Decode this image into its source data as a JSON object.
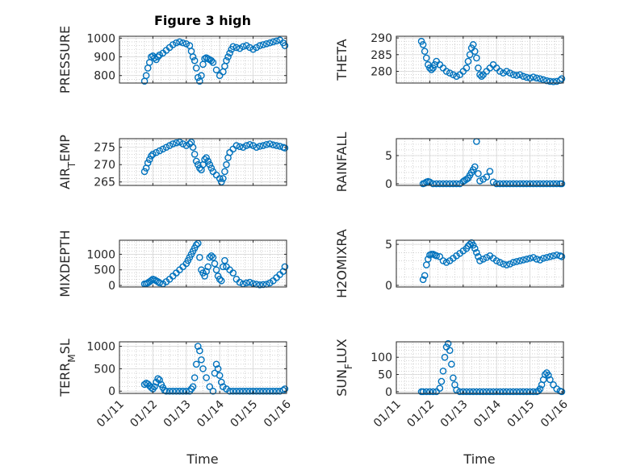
{
  "figure": {
    "title": "Figure 3 high",
    "marker_color": "#0072BD",
    "axis_color": "#262626",
    "grid_color": "#b8b8b8",
    "x_tick_labels": [
      "01/11",
      "01/12",
      "01/13",
      "01/14",
      "01/15",
      "01/16"
    ],
    "xlabel": "Time"
  },
  "chart_data": [
    {
      "type": "scatter",
      "ylabel": "PRESSURE",
      "yticks": [
        800,
        900,
        1000
      ],
      "ylim": [
        760,
        1010
      ],
      "xlim": [
        0,
        5
      ],
      "grid": true,
      "x": [
        0.75,
        0.8,
        0.85,
        0.9,
        0.95,
        1.0,
        1.05,
        1.1,
        1.15,
        1.2,
        1.3,
        1.4,
        1.5,
        1.6,
        1.7,
        1.8,
        1.9,
        2.0,
        2.1,
        2.15,
        2.2,
        2.25,
        2.3,
        2.35,
        2.4,
        2.45,
        2.5,
        2.55,
        2.6,
        2.65,
        2.7,
        2.75,
        2.8,
        2.9,
        3.0,
        3.1,
        3.15,
        3.2,
        3.25,
        3.3,
        3.35,
        3.4,
        3.5,
        3.6,
        3.7,
        3.8,
        3.9,
        4.0,
        4.1,
        4.2,
        4.3,
        4.4,
        4.5,
        4.6,
        4.7,
        4.8,
        4.9,
        4.95
      ],
      "y": [
        770,
        800,
        840,
        870,
        900,
        905,
        895,
        885,
        900,
        910,
        920,
        935,
        950,
        965,
        975,
        980,
        975,
        970,
        960,
        930,
        900,
        880,
        840,
        790,
        770,
        800,
        860,
        890,
        895,
        890,
        885,
        880,
        870,
        830,
        800,
        820,
        850,
        880,
        900,
        920,
        940,
        955,
        950,
        945,
        955,
        960,
        950,
        940,
        950,
        960,
        965,
        970,
        975,
        980,
        985,
        990,
        975,
        960
      ]
    },
    {
      "type": "scatter",
      "ylabel": "THETA",
      "yticks": [
        280,
        285,
        290
      ],
      "ylim": [
        276.5,
        290.5
      ],
      "xlim": [
        0,
        5
      ],
      "grid": true,
      "x": [
        0.75,
        0.8,
        0.85,
        0.9,
        0.95,
        1.0,
        1.05,
        1.1,
        1.15,
        1.2,
        1.3,
        1.4,
        1.5,
        1.6,
        1.7,
        1.8,
        1.9,
        2.0,
        2.1,
        2.15,
        2.2,
        2.25,
        2.3,
        2.35,
        2.4,
        2.45,
        2.5,
        2.55,
        2.6,
        2.7,
        2.8,
        2.9,
        3.0,
        3.1,
        3.2,
        3.3,
        3.4,
        3.5,
        3.6,
        3.7,
        3.8,
        3.9,
        4.0,
        4.1,
        4.2,
        4.3,
        4.4,
        4.5,
        4.6,
        4.7,
        4.8,
        4.9,
        4.95
      ],
      "y": [
        289,
        288,
        286,
        284,
        282,
        281,
        280.5,
        281,
        282,
        283,
        282,
        281,
        280,
        279.5,
        279,
        278.5,
        279,
        280,
        281,
        283,
        285,
        287,
        288,
        286,
        284,
        281,
        279,
        278.5,
        279,
        280,
        281,
        282,
        281,
        280,
        279.5,
        280,
        279.5,
        279,
        278.8,
        279,
        278.5,
        278.2,
        278,
        278.3,
        278,
        277.8,
        277.5,
        277.2,
        277,
        276.9,
        277,
        277.3,
        277.8
      ]
    },
    {
      "type": "scatter",
      "ylabel": "AIR_TEMP",
      "ylabel_main": "AIR",
      "ylabel_sub": "T",
      "ylabel_rest": "EMP",
      "yticks": [
        265,
        270,
        275
      ],
      "ylim": [
        264,
        277.5
      ],
      "xlim": [
        0,
        5
      ],
      "grid": true,
      "x": [
        0.75,
        0.8,
        0.85,
        0.9,
        0.95,
        1.0,
        1.1,
        1.2,
        1.3,
        1.4,
        1.5,
        1.6,
        1.7,
        1.8,
        1.9,
        2.0,
        2.1,
        2.15,
        2.2,
        2.25,
        2.3,
        2.35,
        2.4,
        2.45,
        2.5,
        2.55,
        2.6,
        2.65,
        2.7,
        2.75,
        2.8,
        2.9,
        3.0,
        3.05,
        3.1,
        3.15,
        3.2,
        3.25,
        3.3,
        3.4,
        3.5,
        3.6,
        3.7,
        3.8,
        3.9,
        4.0,
        4.1,
        4.2,
        4.3,
        4.4,
        4.5,
        4.6,
        4.7,
        4.8,
        4.9,
        4.95
      ],
      "y": [
        268,
        269,
        270.5,
        271.5,
        272.5,
        273,
        273.5,
        274,
        274.5,
        275,
        275.5,
        276,
        276.3,
        276.5,
        276,
        275.5,
        276,
        276.5,
        275,
        273,
        271,
        270,
        269,
        268.5,
        270,
        271.5,
        272,
        271,
        270,
        269,
        268,
        267,
        266,
        265,
        266,
        268,
        270,
        272,
        273.5,
        274.5,
        275.5,
        275.2,
        275,
        275.5,
        275.8,
        275.5,
        275,
        275.3,
        275.5,
        275.8,
        276,
        275.7,
        275.5,
        275.3,
        275,
        274.8
      ]
    },
    {
      "type": "scatter",
      "ylabel": "RAINFALL",
      "yticks": [
        0,
        5
      ],
      "ylim": [
        -0.3,
        8
      ],
      "xlim": [
        0,
        5
      ],
      "grid": true,
      "x": [
        0.8,
        0.85,
        0.9,
        0.95,
        1.0,
        1.1,
        1.2,
        1.3,
        1.4,
        1.5,
        1.6,
        1.7,
        1.8,
        1.9,
        2.0,
        2.05,
        2.1,
        2.15,
        2.2,
        2.25,
        2.3,
        2.35,
        2.4,
        2.45,
        2.5,
        2.6,
        2.7,
        2.8,
        2.9,
        3.0,
        3.1,
        3.2,
        3.3,
        3.4,
        3.5,
        3.6,
        3.7,
        3.8,
        3.9,
        4.0,
        4.1,
        4.2,
        4.3,
        4.4,
        4.5,
        4.6,
        4.7,
        4.8,
        4.9,
        4.95
      ],
      "y": [
        0,
        0.1,
        0.3,
        0.4,
        0.3,
        0,
        0,
        0,
        0,
        0,
        0,
        0,
        0,
        0,
        0.4,
        0.6,
        0.8,
        1.0,
        1.5,
        2.0,
        2.5,
        3.0,
        7.5,
        1.8,
        0.5,
        0.8,
        1.2,
        2.2,
        0.3,
        0,
        0,
        0,
        0,
        0,
        0,
        0,
        0,
        0,
        0,
        0,
        0,
        0,
        0,
        0,
        0,
        0,
        0,
        0,
        0,
        0
      ]
    },
    {
      "type": "scatter",
      "ylabel": "MIXDEPTH",
      "yticks": [
        0,
        500,
        1000
      ],
      "ylim": [
        -50,
        1450
      ],
      "xlim": [
        0,
        5
      ],
      "grid": true,
      "x": [
        0.75,
        0.8,
        0.85,
        0.9,
        0.95,
        1.0,
        1.05,
        1.1,
        1.15,
        1.2,
        1.3,
        1.4,
        1.5,
        1.6,
        1.7,
        1.8,
        1.9,
        2.0,
        2.05,
        2.1,
        2.15,
        2.2,
        2.25,
        2.3,
        2.35,
        2.4,
        2.45,
        2.5,
        2.55,
        2.6,
        2.65,
        2.7,
        2.75,
        2.8,
        2.85,
        2.9,
        2.95,
        3.0,
        3.05,
        3.1,
        3.15,
        3.2,
        3.3,
        3.4,
        3.5,
        3.6,
        3.7,
        3.8,
        3.9,
        4.0,
        4.1,
        4.2,
        4.3,
        4.4,
        4.5,
        4.6,
        4.7,
        4.8,
        4.9,
        4.95
      ],
      "y": [
        50,
        60,
        80,
        120,
        160,
        200,
        180,
        150,
        120,
        80,
        50,
        120,
        200,
        300,
        400,
        500,
        600,
        700,
        800,
        900,
        1000,
        1100,
        1200,
        1300,
        1350,
        900,
        500,
        400,
        300,
        450,
        600,
        900,
        950,
        900,
        700,
        500,
        300,
        200,
        150,
        600,
        800,
        600,
        500,
        400,
        200,
        100,
        50,
        80,
        100,
        60,
        40,
        20,
        30,
        40,
        80,
        150,
        250,
        350,
        450,
        600
      ]
    },
    {
      "type": "scatter",
      "ylabel": "H2OMIXRA",
      "yticks": [
        0,
        5
      ],
      "ylim": [
        -0.2,
        5.5
      ],
      "xlim": [
        0,
        5
      ],
      "grid": true,
      "x": [
        0.8,
        0.85,
        0.9,
        0.95,
        1.0,
        1.05,
        1.1,
        1.15,
        1.2,
        1.3,
        1.4,
        1.5,
        1.6,
        1.7,
        1.8,
        1.9,
        2.0,
        2.1,
        2.15,
        2.2,
        2.25,
        2.3,
        2.35,
        2.4,
        2.45,
        2.5,
        2.6,
        2.7,
        2.8,
        2.9,
        3.0,
        3.1,
        3.2,
        3.3,
        3.4,
        3.5,
        3.6,
        3.7,
        3.8,
        3.9,
        4.0,
        4.1,
        4.2,
        4.3,
        4.4,
        4.5,
        4.6,
        4.7,
        4.8,
        4.9,
        4.95
      ],
      "y": [
        0.7,
        1.2,
        2.5,
        3.2,
        3.7,
        3.8,
        3.8,
        3.7,
        3.6,
        3.5,
        3.0,
        2.8,
        3.0,
        3.3,
        3.6,
        3.9,
        4.2,
        4.5,
        4.8,
        5.0,
        5.2,
        4.9,
        4.5,
        4.0,
        3.5,
        3.0,
        3.2,
        3.4,
        3.6,
        3.3,
        3.0,
        2.8,
        2.6,
        2.5,
        2.6,
        2.8,
        2.9,
        3.0,
        3.1,
        3.2,
        3.3,
        3.4,
        3.2,
        3.1,
        3.3,
        3.4,
        3.5,
        3.6,
        3.7,
        3.6,
        3.5
      ]
    },
    {
      "type": "scatter",
      "ylabel": "TERR_MSL",
      "ylabel_main": "TERR",
      "ylabel_sub": "M",
      "ylabel_rest": "SL",
      "yticks": [
        0,
        500,
        1000
      ],
      "ylim": [
        -50,
        1100
      ],
      "xlim": [
        0,
        5
      ],
      "grid": true,
      "x": [
        0.75,
        0.8,
        0.85,
        0.9,
        0.95,
        1.0,
        1.05,
        1.1,
        1.15,
        1.2,
        1.25,
        1.3,
        1.35,
        1.4,
        1.5,
        1.6,
        1.7,
        1.8,
        1.9,
        2.0,
        2.1,
        2.15,
        2.2,
        2.25,
        2.3,
        2.35,
        2.4,
        2.45,
        2.5,
        2.6,
        2.7,
        2.8,
        2.85,
        2.9,
        2.95,
        3.0,
        3.05,
        3.1,
        3.2,
        3.3,
        3.4,
        3.5,
        3.6,
        3.7,
        3.8,
        3.9,
        4.0,
        4.1,
        4.2,
        4.3,
        4.4,
        4.5,
        4.6,
        4.7,
        4.8,
        4.9,
        4.95
      ],
      "y": [
        150,
        180,
        160,
        120,
        80,
        50,
        100,
        200,
        280,
        250,
        150,
        80,
        20,
        0,
        0,
        0,
        0,
        0,
        0,
        0,
        0,
        50,
        100,
        300,
        600,
        1000,
        900,
        700,
        500,
        300,
        100,
        0,
        400,
        600,
        500,
        350,
        200,
        100,
        50,
        0,
        0,
        0,
        0,
        0,
        0,
        0,
        0,
        0,
        0,
        0,
        0,
        0,
        0,
        0,
        0,
        20,
        50
      ]
    },
    {
      "type": "scatter",
      "ylabel": "SUN_FLUX",
      "ylabel_main": "SUN",
      "ylabel_sub": "F",
      "ylabel_rest": "LUX",
      "yticks": [
        0,
        50,
        100
      ],
      "ylim": [
        -5,
        145
      ],
      "xlim": [
        0,
        5
      ],
      "grid": true,
      "x": [
        0.75,
        0.8,
        0.9,
        1.0,
        1.1,
        1.2,
        1.3,
        1.35,
        1.4,
        1.45,
        1.5,
        1.55,
        1.6,
        1.65,
        1.7,
        1.75,
        1.8,
        1.9,
        2.0,
        2.1,
        2.2,
        2.3,
        2.4,
        2.5,
        2.6,
        2.7,
        2.8,
        2.9,
        3.0,
        3.1,
        3.2,
        3.3,
        3.4,
        3.5,
        3.6,
        3.7,
        3.8,
        3.9,
        4.0,
        4.1,
        4.2,
        4.25,
        4.3,
        4.35,
        4.4,
        4.45,
        4.5,
        4.55,
        4.6,
        4.7,
        4.8,
        4.9,
        4.95
      ],
      "y": [
        0,
        0,
        0,
        0,
        0,
        0,
        10,
        30,
        60,
        100,
        130,
        140,
        120,
        80,
        40,
        20,
        5,
        0,
        0,
        0,
        0,
        0,
        0,
        0,
        0,
        0,
        0,
        0,
        0,
        0,
        0,
        0,
        0,
        0,
        0,
        0,
        0,
        0,
        0,
        0,
        0,
        2,
        8,
        20,
        35,
        50,
        55,
        48,
        35,
        20,
        8,
        2,
        0
      ]
    }
  ]
}
